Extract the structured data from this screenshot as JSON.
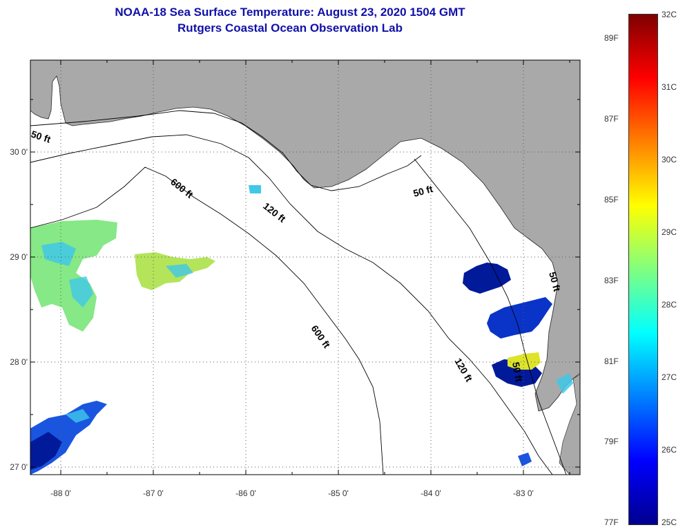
{
  "header": {
    "title": "NOAA-18 Sea Surface Temperature:  August 23, 2020 1504 GMT",
    "subtitle": "Rutgers Coastal Ocean Observation Lab"
  },
  "map": {
    "region": "Florida Big Bend / NE Gulf of Mexico",
    "lon_ticks": [
      "-88 0'",
      "-87 0'",
      "-86 0'",
      "-85 0'",
      "-84 0'",
      "-83 0'"
    ],
    "lat_ticks": [
      "30 0'",
      "29 0'",
      "28 0'",
      "27 0'"
    ],
    "contour_labels": [
      {
        "text": "50 ft"
      },
      {
        "text": "600 ft"
      },
      {
        "text": "120 ft"
      },
      {
        "text": "50 ft"
      },
      {
        "text": "600 ft"
      },
      {
        "text": "120 ft"
      },
      {
        "text": "50 ft"
      },
      {
        "text": "50 ft"
      }
    ],
    "land_color": "#a9a9a9",
    "ocean_color": "#ffffff"
  },
  "colorbar": {
    "celsius_ticks": [
      "32C",
      "31C",
      "30C",
      "29C",
      "28C",
      "27C",
      "26C",
      "25C"
    ],
    "fahrenheit_ticks": [
      "89F",
      "87F",
      "85F",
      "83F",
      "81F",
      "79F",
      "77F"
    ],
    "colors": [
      "#7f0000",
      "#ff0000",
      "#ff8000",
      "#ffff00",
      "#80ff80",
      "#00ffff",
      "#0080ff",
      "#0000ff",
      "#00008f"
    ]
  }
}
